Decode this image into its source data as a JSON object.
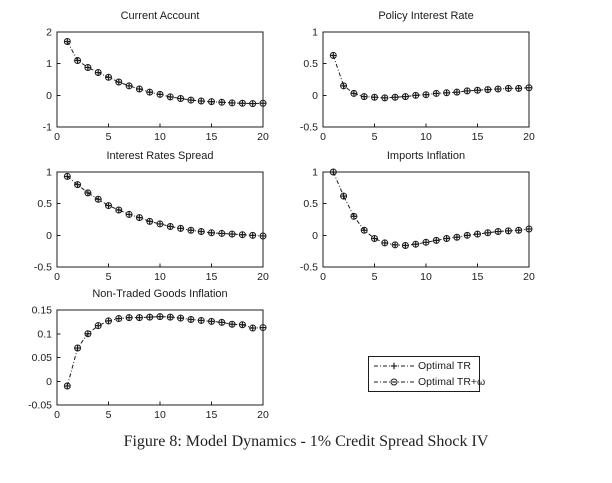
{
  "figure": {
    "caption": "Figure 8: Model Dynamics - 1% Credit Spread Shock IV",
    "background": "#ffffff",
    "ink_color": "#1c1c1c"
  },
  "legend": {
    "position": "bottom-right",
    "entries": [
      {
        "label": "Optimal TR",
        "marker": "plus",
        "line_style": "dash-dot"
      },
      {
        "label": "Optimal TR+ω",
        "marker": "circle",
        "line_style": "dash-dot"
      }
    ]
  },
  "chart_data": [
    {
      "type": "line",
      "title": "Current Account",
      "x": [
        1,
        2,
        3,
        4,
        5,
        6,
        7,
        8,
        9,
        10,
        11,
        12,
        13,
        14,
        15,
        16,
        17,
        18,
        19,
        20
      ],
      "xlim": [
        0,
        20
      ],
      "ylim": [
        -1,
        2
      ],
      "xticks": [
        0,
        5,
        10,
        15,
        20
      ],
      "yticks": [
        -1,
        0,
        1,
        2
      ],
      "grid": false,
      "line_style": "dash-dot",
      "note": "both series overlap almost exactly",
      "series": [
        {
          "name": "Optimal TR",
          "marker": "plus",
          "values": [
            1.7,
            1.1,
            0.88,
            0.72,
            0.57,
            0.42,
            0.3,
            0.2,
            0.1,
            0.03,
            -0.05,
            -0.1,
            -0.15,
            -0.18,
            -0.2,
            -0.22,
            -0.24,
            -0.25,
            -0.26,
            -0.25
          ]
        },
        {
          "name": "Optimal TR+ω",
          "marker": "circle",
          "values": [
            1.7,
            1.1,
            0.88,
            0.72,
            0.57,
            0.42,
            0.3,
            0.2,
            0.1,
            0.03,
            -0.05,
            -0.1,
            -0.15,
            -0.18,
            -0.2,
            -0.22,
            -0.24,
            -0.25,
            -0.26,
            -0.25
          ]
        }
      ]
    },
    {
      "type": "line",
      "title": "Policy Interest Rate",
      "x": [
        1,
        2,
        3,
        4,
        5,
        6,
        7,
        8,
        9,
        10,
        11,
        12,
        13,
        14,
        15,
        16,
        17,
        18,
        19,
        20
      ],
      "xlim": [
        0,
        20
      ],
      "ylim": [
        -0.5,
        1
      ],
      "xticks": [
        0,
        5,
        10,
        15,
        20
      ],
      "yticks": [
        -0.5,
        0,
        0.5,
        1
      ],
      "grid": false,
      "line_style": "dash-dot",
      "note": "both series overlap almost exactly",
      "series": [
        {
          "name": "Optimal TR",
          "marker": "plus",
          "values": [
            0.63,
            0.15,
            0.03,
            -0.02,
            -0.03,
            -0.04,
            -0.03,
            -0.02,
            0.0,
            0.01,
            0.03,
            0.04,
            0.05,
            0.07,
            0.08,
            0.09,
            0.1,
            0.11,
            0.11,
            0.12
          ]
        },
        {
          "name": "Optimal TR+ω",
          "marker": "circle",
          "values": [
            0.63,
            0.15,
            0.03,
            -0.02,
            -0.03,
            -0.04,
            -0.03,
            -0.02,
            0.0,
            0.01,
            0.03,
            0.04,
            0.05,
            0.07,
            0.08,
            0.09,
            0.1,
            0.11,
            0.11,
            0.12
          ]
        }
      ]
    },
    {
      "type": "line",
      "title": "Interest Rates Spread",
      "x": [
        1,
        2,
        3,
        4,
        5,
        6,
        7,
        8,
        9,
        10,
        11,
        12,
        13,
        14,
        15,
        16,
        17,
        18,
        19,
        20
      ],
      "xlim": [
        0,
        20
      ],
      "ylim": [
        -0.5,
        1
      ],
      "xticks": [
        0,
        5,
        10,
        15,
        20
      ],
      "yticks": [
        -0.5,
        0,
        0.5,
        1
      ],
      "grid": false,
      "line_style": "dash-dot",
      "note": "both series overlap almost exactly",
      "series": [
        {
          "name": "Optimal TR",
          "marker": "plus",
          "values": [
            0.93,
            0.8,
            0.67,
            0.57,
            0.47,
            0.4,
            0.33,
            0.28,
            0.22,
            0.18,
            0.14,
            0.11,
            0.08,
            0.06,
            0.04,
            0.03,
            0.02,
            0.01,
            0.0,
            -0.01
          ]
        },
        {
          "name": "Optimal TR+ω",
          "marker": "circle",
          "values": [
            0.93,
            0.8,
            0.67,
            0.57,
            0.47,
            0.4,
            0.33,
            0.28,
            0.22,
            0.18,
            0.14,
            0.11,
            0.08,
            0.06,
            0.04,
            0.03,
            0.02,
            0.01,
            0.0,
            -0.01
          ]
        }
      ]
    },
    {
      "type": "line",
      "title": "Imports Inflation",
      "x": [
        1,
        2,
        3,
        4,
        5,
        6,
        7,
        8,
        9,
        10,
        11,
        12,
        13,
        14,
        15,
        16,
        17,
        18,
        19,
        20
      ],
      "xlim": [
        0,
        20
      ],
      "ylim": [
        -0.5,
        1
      ],
      "xticks": [
        0,
        5,
        10,
        15,
        20
      ],
      "yticks": [
        -0.5,
        0,
        0.5,
        1
      ],
      "grid": false,
      "line_style": "dash-dot",
      "note": "both series overlap almost exactly",
      "series": [
        {
          "name": "Optimal TR",
          "marker": "plus",
          "values": [
            1.0,
            0.62,
            0.3,
            0.08,
            -0.05,
            -0.12,
            -0.15,
            -0.16,
            -0.14,
            -0.11,
            -0.08,
            -0.05,
            -0.03,
            0.0,
            0.02,
            0.04,
            0.06,
            0.07,
            0.08,
            0.1
          ]
        },
        {
          "name": "Optimal TR+ω",
          "marker": "circle",
          "values": [
            1.0,
            0.62,
            0.3,
            0.08,
            -0.05,
            -0.12,
            -0.15,
            -0.16,
            -0.14,
            -0.11,
            -0.08,
            -0.05,
            -0.03,
            0.0,
            0.02,
            0.04,
            0.06,
            0.07,
            0.08,
            0.1
          ]
        }
      ]
    },
    {
      "type": "line",
      "title": "Non-Traded Goods Inflation",
      "x": [
        1,
        2,
        3,
        4,
        5,
        6,
        7,
        8,
        9,
        10,
        11,
        12,
        13,
        14,
        15,
        16,
        17,
        18,
        19,
        20
      ],
      "xlim": [
        0,
        20
      ],
      "ylim": [
        -0.05,
        0.15
      ],
      "xticks": [
        0,
        5,
        10,
        15,
        20
      ],
      "yticks": [
        -0.05,
        0,
        0.05,
        0.1,
        0.15
      ],
      "grid": false,
      "line_style": "dash-dot",
      "note": "both series overlap almost exactly",
      "series": [
        {
          "name": "Optimal TR",
          "marker": "plus",
          "values": [
            -0.01,
            0.07,
            0.1,
            0.117,
            0.127,
            0.132,
            0.134,
            0.134,
            0.135,
            0.136,
            0.135,
            0.133,
            0.13,
            0.128,
            0.126,
            0.124,
            0.12,
            0.119,
            0.112,
            0.113
          ]
        },
        {
          "name": "Optimal TR+ω",
          "marker": "circle",
          "values": [
            -0.01,
            0.07,
            0.1,
            0.117,
            0.127,
            0.132,
            0.134,
            0.134,
            0.135,
            0.136,
            0.135,
            0.133,
            0.13,
            0.128,
            0.126,
            0.124,
            0.12,
            0.119,
            0.112,
            0.113
          ]
        }
      ]
    }
  ]
}
